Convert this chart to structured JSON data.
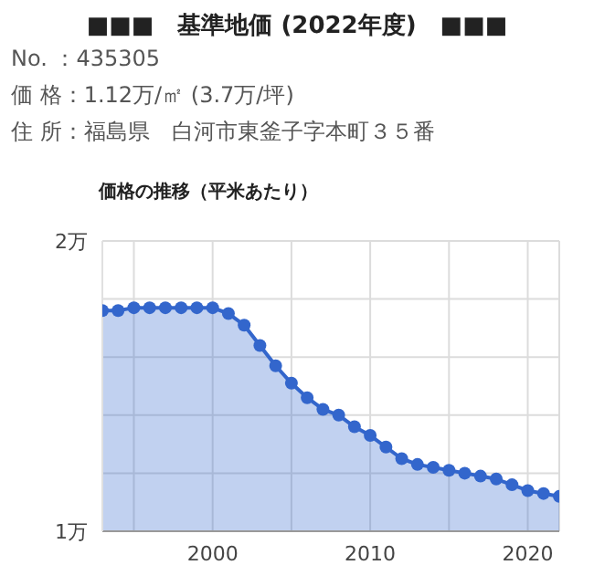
{
  "chart_data": {
    "type": "area",
    "title": "■■■　基準地価 (2022年度)　■■■",
    "annotations": [
      "No. ：435305",
      "価 格：1.12万/㎡ (3.7万/坪)",
      "住 所：福島県　白河市東釜子字本町３５番"
    ],
    "subtitle": "価格の推移（平米あたり）",
    "x": [
      1993,
      1994,
      1995,
      1996,
      1997,
      1998,
      1999,
      2000,
      2001,
      2002,
      2003,
      2004,
      2005,
      2006,
      2007,
      2008,
      2009,
      2010,
      2011,
      2012,
      2013,
      2014,
      2015,
      2016,
      2017,
      2018,
      2019,
      2020,
      2021,
      2022
    ],
    "series": [
      {
        "color": "#3366cc",
        "values": [
          1.76,
          1.76,
          1.77,
          1.77,
          1.77,
          1.77,
          1.77,
          1.77,
          1.75,
          1.71,
          1.64,
          1.57,
          1.51,
          1.46,
          1.42,
          1.4,
          1.36,
          1.33,
          1.29,
          1.25,
          1.23,
          1.22,
          1.21,
          1.2,
          1.19,
          1.18,
          1.16,
          1.14,
          1.13,
          1.12
        ]
      }
    ],
    "xlim": [
      1993,
      2022
    ],
    "xticks": [
      {
        "value": 1995,
        "label": null
      },
      2000,
      {
        "value": 2005,
        "label": null
      },
      2010,
      {
        "value": 2015,
        "label": null
      },
      2020
    ],
    "ylim": [
      1,
      2
    ],
    "yticks": [
      {
        "value": 1,
        "label": "1万"
      },
      {
        "value": 1.2,
        "label": null
      },
      {
        "value": 1.4,
        "label": null
      },
      {
        "value": 1.6,
        "label": null
      },
      {
        "value": 1.8,
        "label": null
      },
      {
        "value": 2,
        "label": "2万"
      }
    ],
    "grid": true,
    "marker": "circle",
    "line_style": "solid"
  }
}
